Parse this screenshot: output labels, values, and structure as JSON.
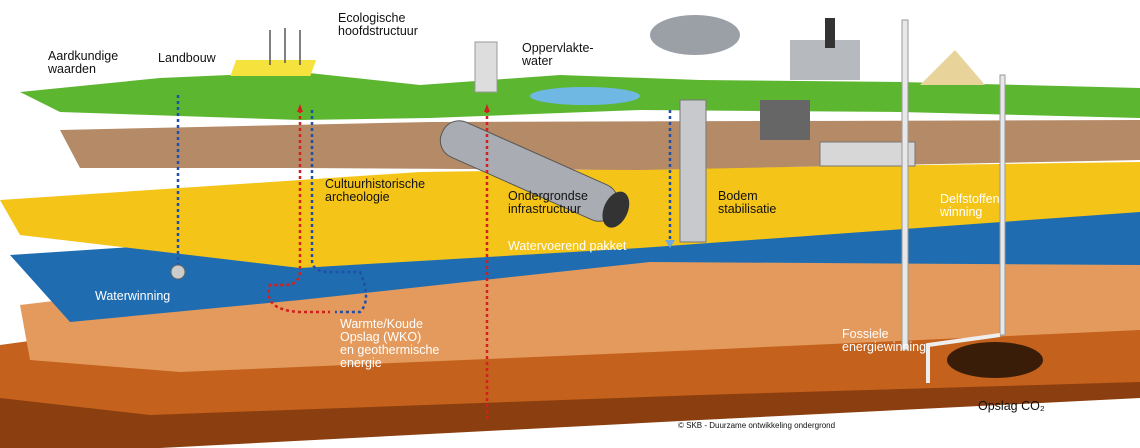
{
  "labels": [
    {
      "lines": [
        "Aardkundige",
        "waarden"
      ]
    },
    {
      "lines": [
        "Landbouw"
      ]
    },
    {
      "lines": [
        "Ecologische",
        "hoofdstructuur"
      ]
    },
    {
      "lines": [
        "Oppervlakte-",
        "water"
      ]
    },
    {
      "lines": [
        "Cultuurhistorische",
        "archeologie"
      ]
    },
    {
      "lines": [
        "Ondergrondse",
        "infrastructuur"
      ]
    },
    {
      "lines": [
        "Bodem",
        "stabilisatie"
      ]
    },
    {
      "lines": [
        "Delfstoffen",
        "winning"
      ]
    },
    {
      "lines": [
        "Watervoerend pakket"
      ]
    },
    {
      "lines": [
        "Waterwinning"
      ]
    },
    {
      "lines": [
        "Warmte/Koude",
        "Opslag (WKO)",
        "en geothermische",
        "energie"
      ]
    },
    {
      "lines": [
        "Fossiele",
        "energiewinning"
      ]
    },
    {
      "lines": [
        "Opslag CO₂"
      ]
    }
  ],
  "credit": "© SKB - Duurzame ontwikkeling ondergrond"
}
